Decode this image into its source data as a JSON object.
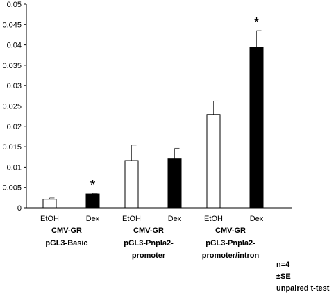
{
  "chart_data": {
    "type": "bar",
    "y_ticks": [
      "0",
      "0.005",
      "0.01",
      "0.015",
      "0.02",
      "0.025",
      "0.03",
      "0.035",
      "0.04",
      "0.045",
      "0.05"
    ],
    "ylim": [
      0,
      0.05
    ],
    "groups": [
      {
        "label_lines": [
          "CMV-GR",
          "pGL3-Basic"
        ],
        "bars": [
          {
            "category": "EtOH",
            "value": 0.0021,
            "error": 0.0003,
            "fill": "#ffffff",
            "marker": ""
          },
          {
            "category": "Dex",
            "value": 0.0034,
            "error": 0.0002,
            "fill": "#000000",
            "marker": "*"
          }
        ]
      },
      {
        "label_lines": [
          "CMV-GR",
          "pGL3-Pnpla2-",
          "promoter"
        ],
        "bars": [
          {
            "category": "EtOH",
            "value": 0.0116,
            "error": 0.0038,
            "fill": "#ffffff",
            "marker": ""
          },
          {
            "category": "Dex",
            "value": 0.012,
            "error": 0.0026,
            "fill": "#000000",
            "marker": ""
          }
        ]
      },
      {
        "label_lines": [
          "CMV-GR",
          "pGL3-Pnpla2-",
          "promoter/intron"
        ],
        "bars": [
          {
            "category": "EtOH",
            "value": 0.0229,
            "error": 0.0033,
            "fill": "#ffffff",
            "marker": ""
          },
          {
            "category": "Dex",
            "value": 0.0394,
            "error": 0.0041,
            "fill": "#000000",
            "marker": "*"
          }
        ]
      }
    ],
    "notes": [
      "n=4",
      "±SE",
      "unpaired t-test"
    ],
    "grid": false,
    "legend": "none"
  }
}
